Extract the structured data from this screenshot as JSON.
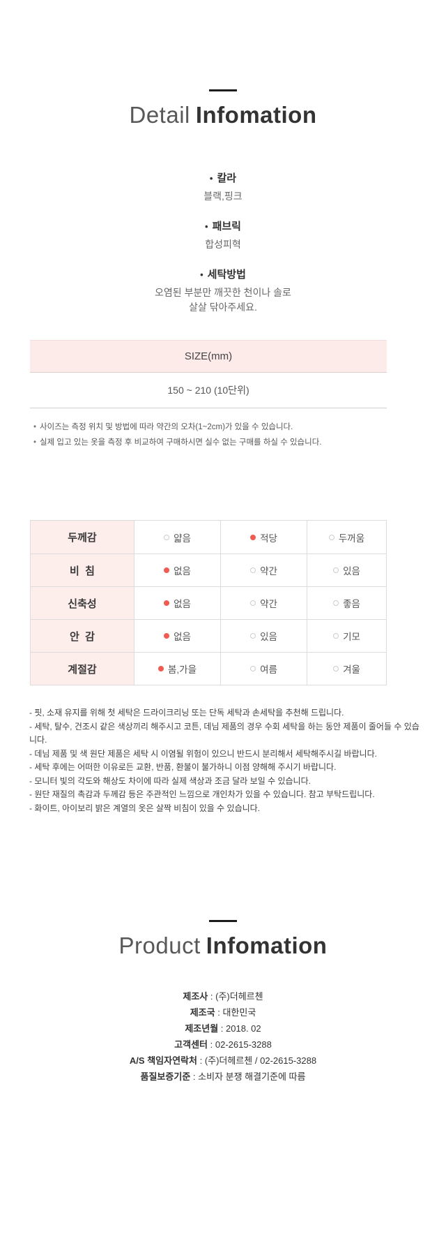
{
  "detail_section": {
    "title_light": "Detail",
    "title_bold": "Infomation",
    "bullet_char": "•",
    "bullets": [
      {
        "label": "칼라",
        "value": "블랙,핑크"
      },
      {
        "label": "패브릭",
        "value": "합성피혁"
      },
      {
        "label": "세탁방법",
        "value": "오염된 부분만 깨끗한 천이나 솔로\n살살 닦아주세요."
      }
    ]
  },
  "size_table": {
    "header": "SIZE(mm)",
    "value": "150 ~ 210 (10단위)",
    "note_bullet": "•",
    "notes": [
      "사이즈는 측정 위치 및 방법에 따라 약간의 오차(1~2cm)가 있을 수 있습니다.",
      "실제 입고 있는 옷을 측정 후 비교하여 구매하시면 실수 없는 구매를 하실 수 있습니다."
    ]
  },
  "attributes": {
    "rows": [
      {
        "label": "두께감",
        "options": [
          {
            "text": "얇음",
            "selected": false
          },
          {
            "text": "적당",
            "selected": true
          },
          {
            "text": "두꺼움",
            "selected": false
          }
        ]
      },
      {
        "label": "비  침",
        "options": [
          {
            "text": "없음",
            "selected": true
          },
          {
            "text": "약간",
            "selected": false
          },
          {
            "text": "있음",
            "selected": false
          }
        ]
      },
      {
        "label": "신축성",
        "options": [
          {
            "text": "없음",
            "selected": true
          },
          {
            "text": "약간",
            "selected": false
          },
          {
            "text": "좋음",
            "selected": false
          }
        ]
      },
      {
        "label": "안  감",
        "options": [
          {
            "text": "없음",
            "selected": true
          },
          {
            "text": "있음",
            "selected": false
          },
          {
            "text": "기모",
            "selected": false
          }
        ]
      },
      {
        "label": "계절감",
        "options": [
          {
            "text": "봄,가을",
            "selected": true
          },
          {
            "text": "여름",
            "selected": false
          },
          {
            "text": "겨울",
            "selected": false
          }
        ]
      }
    ]
  },
  "care_notes": [
    "- 핏, 소재 유지를 위해 첫 세탁은 드라이크리닝 또는 단독 세탁과 손세탁을 추천해 드립니다.",
    "- 세탁, 탈수, 건조시 같은 색상끼리 해주시고 코튼, 데님 제품의 경우 수회 세탁을 하는 동안 제품이 줄어들 수 있습니다.",
    "- 데님 제품 및 색 원단 제품은 세탁 시 이염될 위험이 있으니 반드시 분리해서 세탁해주시길 바랍니다.",
    "- 세탁 후에는 어떠한 이유로든 교환, 반품, 환불이 불가하니 이점 양해해 주시기 바랍니다.",
    "- 모니터 빛의 각도와 해상도 차이에 따라 실제 색상과 조금 달라 보일 수 있습니다.",
    "- 원단 재질의 촉감과 두께감 등은 주관적인 느낌으로 개인차가 있을 수 있습니다. 참고 부탁드립니다.",
    "- 화이트, 아이보리 밝은 계열의 옷은 살짝 비침이 있을 수 있습니다."
  ],
  "product_section": {
    "title_light": "Product",
    "title_bold": "Infomation",
    "separator": " : ",
    "rows": [
      {
        "label": "제조사",
        "value": "(주)더헤르첸"
      },
      {
        "label": "제조국",
        "value": "대한민국"
      },
      {
        "label": "제조년월",
        "value": "2018. 02"
      },
      {
        "label": "고객센터",
        "value": "02-2615-3288"
      },
      {
        "label": "A/S 책임자연락처",
        "value": "(주)더헤르첸 / 02-2615-3288"
      },
      {
        "label": "품질보증기준",
        "value": "소비자 분쟁 해결기준에 따름"
      }
    ]
  },
  "colors": {
    "pink_header_bg": "#fcebe9",
    "pink_label_bg": "#fdedeb",
    "selected_dot_red": "#f15b52",
    "table_border": "#dcdcdc"
  }
}
